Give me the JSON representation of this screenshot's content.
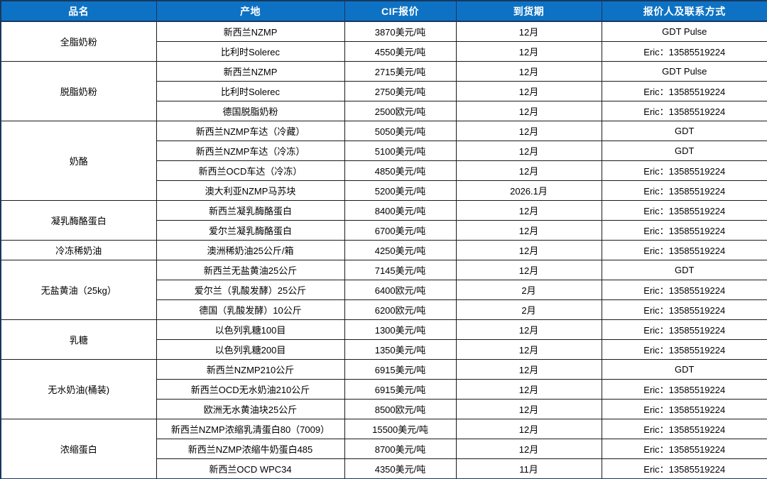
{
  "colors": {
    "header_bg": "#0E72C4",
    "header_text": "#FFFFFF",
    "body_text": "#000000",
    "outer_border": "#17375E",
    "grid_line": "#1A1A1A"
  },
  "table": {
    "headers": [
      "品名",
      "产地",
      "CIF报价",
      "到货期",
      "报价人及联系方式"
    ],
    "groups": [
      {
        "name": "全脂奶粉",
        "rows": [
          [
            "新西兰NZMP",
            "3870美元/吨",
            "12月",
            "GDT Pulse"
          ],
          [
            "比利时Solerec",
            "4550美元/吨",
            "12月",
            "Eric：13585519224"
          ]
        ]
      },
      {
        "name": "脱脂奶粉",
        "rows": [
          [
            "新西兰NZMP",
            "2715美元/吨",
            "12月",
            "GDT Pulse"
          ],
          [
            "比利时Solerec",
            "2750美元/吨",
            "12月",
            "Eric：13585519224"
          ],
          [
            "德国脱脂奶粉",
            "2500欧元/吨",
            "12月",
            "Eric：13585519224"
          ]
        ]
      },
      {
        "name": "奶酪",
        "rows": [
          [
            "新西兰NZMP车达（冷藏）",
            "5050美元/吨",
            "12月",
            "GDT"
          ],
          [
            "新西兰NZMP车达（冷冻）",
            "5100美元/吨",
            "12月",
            "GDT"
          ],
          [
            "新西兰OCD车达（冷冻）",
            "4850美元/吨",
            "12月",
            "Eric：13585519224"
          ],
          [
            "澳大利亚NZMP马苏块",
            "5200美元/吨",
            "2026.1月",
            "Eric：13585519224"
          ]
        ]
      },
      {
        "name": "凝乳酶酪蛋白",
        "rows": [
          [
            "新西兰凝乳酶酪蛋白",
            "8400美元/吨",
            "12月",
            "Eric：13585519224"
          ],
          [
            "爱尔兰凝乳酶酪蛋白",
            "6700美元/吨",
            "12月",
            "Eric：13585519224"
          ]
        ]
      },
      {
        "name": "冷冻稀奶油",
        "rows": [
          [
            "澳洲稀奶油25公斤/箱",
            "4250美元/吨",
            "12月",
            "Eric：13585519224"
          ]
        ]
      },
      {
        "name": "无盐黄油（25kg）",
        "rows": [
          [
            "新西兰无盐黄油25公斤",
            "7145美元/吨",
            "12月",
            "GDT"
          ],
          [
            "爱尔兰（乳酸发酵）25公斤",
            "6400欧元/吨",
            "2月",
            "Eric：13585519224"
          ],
          [
            "德国（乳酸发酵）10公斤",
            "6200欧元/吨",
            "2月",
            "Eric：13585519224"
          ]
        ]
      },
      {
        "name": "乳糖",
        "rows": [
          [
            "以色列乳糖100目",
            "1300美元/吨",
            "12月",
            "Eric：13585519224"
          ],
          [
            "以色列乳糖200目",
            "1350美元/吨",
            "12月",
            "Eric：13585519224"
          ]
        ]
      },
      {
        "name": "无水奶油(桶装)",
        "rows": [
          [
            "新西兰NZMP210公斤",
            "6915美元/吨",
            "12月",
            "GDT"
          ],
          [
            "新西兰OCD无水奶油210公斤",
            "6915美元/吨",
            "12月",
            "Eric：13585519224"
          ],
          [
            "欧洲无水黄油块25公斤",
            "8500欧元/吨",
            "12月",
            "Eric：13585519224"
          ]
        ]
      },
      {
        "name": "浓缩蛋白",
        "rows": [
          [
            "新西兰NZMP浓缩乳清蛋白80（7009）",
            "15500美元/吨",
            "12月",
            "Eric：13585519224"
          ],
          [
            "新西兰NZMP浓缩牛奶蛋白485",
            "8700美元/吨",
            "12月",
            "Eric：13585519224"
          ],
          [
            "新西兰OCD WPC34",
            "4350美元/吨",
            "11月",
            "Eric：13585519224"
          ]
        ]
      }
    ]
  }
}
